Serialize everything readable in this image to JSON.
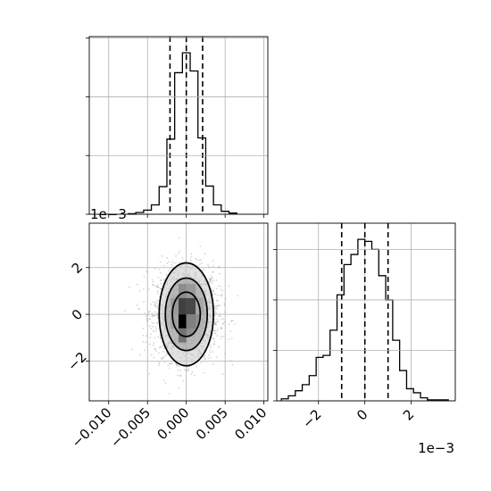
{
  "chart_data": [
    {
      "panel": "marginal-x-histogram",
      "type": "histogram",
      "x_range": [
        -0.0125,
        0.0105
      ],
      "bin_edges": [
        -0.0075,
        -0.0065,
        -0.0055,
        -0.0045,
        -0.0035,
        -0.0025,
        -0.0015,
        -0.0005,
        0.0005,
        0.0015,
        0.0025,
        0.0035,
        0.0045,
        0.0055,
        0.0065
      ],
      "counts": [
        1,
        3,
        7,
        16,
        47,
        128,
        241,
        275,
        244,
        130,
        48,
        16,
        5,
        2
      ],
      "quantile_lines": [
        -0.0021,
        0.0,
        0.0021
      ],
      "grid": true,
      "tick_labels_shown": false
    },
    {
      "panel": "joint-2d-density",
      "type": "scatter-contour",
      "xlabel_ticks": [
        "−0.010",
        "−0.005",
        "0.000",
        "0.005",
        "0.010"
      ],
      "x_ticks": [
        -0.01,
        -0.005,
        0.0,
        0.005,
        0.01
      ],
      "x_range": [
        -0.0125,
        0.0105
      ],
      "ylabel_ticks": [
        "−2",
        "0",
        "2"
      ],
      "y_ticks": [
        -2,
        0,
        2
      ],
      "y_range": [
        -3.7,
        3.9
      ],
      "y_offset_text": "1e−3",
      "contour_levels": [
        {
          "cx": 0.0,
          "cy": 0.0,
          "rx": 0.0018,
          "ry": 0.95
        },
        {
          "cx": 0.0,
          "cy": 0.0,
          "rx": 0.0027,
          "ry": 1.55
        },
        {
          "cx": 0.0,
          "cy": 0.0,
          "rx": 0.0035,
          "ry": 2.2
        }
      ],
      "density_cells": [
        {
          "x0": -0.001,
          "x1": 0.0,
          "y0": -0.6,
          "y1": 0.0,
          "level": 1.0
        },
        {
          "x0": -0.001,
          "x1": 0.0,
          "y0": 0.0,
          "y1": 0.7,
          "level": 0.75
        },
        {
          "x0": 0.0,
          "x1": 0.0012,
          "y0": 0.0,
          "y1": 0.7,
          "level": 0.72
        },
        {
          "x0": -0.001,
          "x1": 0.0,
          "y0": -1.2,
          "y1": -0.6,
          "level": 0.55
        },
        {
          "x0": 0.0,
          "x1": 0.0012,
          "y0": -0.6,
          "y1": 0.0,
          "level": 0.5
        },
        {
          "x0": -0.001,
          "x1": 0.0,
          "y0": 0.7,
          "y1": 1.3,
          "level": 0.45
        },
        {
          "x0": 0.0,
          "x1": 0.0012,
          "y0": 0.7,
          "y1": 1.3,
          "level": 0.4
        },
        {
          "x0": -0.002,
          "x1": -0.001,
          "y0": 0.0,
          "y1": 0.7,
          "level": 0.4
        },
        {
          "x0": 0.0012,
          "x1": 0.0022,
          "y0": 0.0,
          "y1": 0.7,
          "level": 0.35
        },
        {
          "x0": -0.002,
          "x1": -0.001,
          "y0": -0.6,
          "y1": 0.0,
          "level": 0.38
        }
      ],
      "scatter_spread": {
        "sx": 0.0021,
        "sy": 1.0,
        "n_points": 1800
      },
      "grid": true
    },
    {
      "panel": "marginal-y-histogram",
      "type": "histogram",
      "x_range": [
        -3.8,
        3.9
      ],
      "xlabel_ticks": [
        "−2",
        "0",
        "2"
      ],
      "x_ticks": [
        -2,
        0,
        2
      ],
      "x_offset_text": "1e−3",
      "bin_edges": [
        -3.6,
        -3.3,
        -3.0,
        -2.7,
        -2.4,
        -2.1,
        -1.8,
        -1.5,
        -1.2,
        -0.9,
        -0.6,
        -0.3,
        0.0,
        0.3,
        0.6,
        0.9,
        1.2,
        1.5,
        1.8,
        2.1,
        2.4,
        2.7,
        3.0,
        3.3,
        3.6
      ],
      "counts": [
        2,
        5,
        10,
        16,
        25,
        43,
        45,
        70,
        105,
        135,
        145,
        160,
        158,
        150,
        124,
        100,
        60,
        30,
        12,
        8,
        3,
        1,
        1,
        1
      ],
      "quantile_lines": [
        -1.0,
        0.0,
        1.0
      ],
      "grid": true
    }
  ]
}
